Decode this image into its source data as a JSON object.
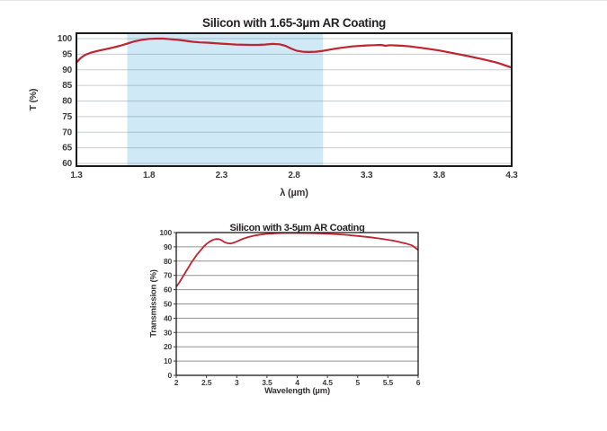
{
  "colors": {
    "curve_red": "#bf2430",
    "band_blue": "#cfe9f6",
    "grid_gray_top": "rgba(104,122,134,0.38)",
    "grid_gray_bottom": "#909090",
    "border_black": "#1b1b1b",
    "tick_text": "#3b3b3b"
  },
  "chart_data": [
    {
      "type": "line",
      "title": "Silicon with 1.65-3µm AR Coating",
      "xlabel": "λ (µm)",
      "ylabel": "T (%)",
      "xlim": [
        1.3,
        4.3
      ],
      "ylim": [
        60,
        100
      ],
      "xticks": [
        1.3,
        1.8,
        2.3,
        2.8,
        3.3,
        3.8,
        4.3
      ],
      "xtick_labels": [
        "1.3",
        "1.8",
        "2.3",
        "2.8",
        "3.3",
        "3.8",
        "4.3"
      ],
      "yticks": [
        60,
        65,
        70,
        75,
        80,
        85,
        90,
        95,
        100
      ],
      "ytick_labels": [
        "60",
        "65",
        "70",
        "75",
        "80",
        "85",
        "90",
        "95",
        "100"
      ],
      "grid": true,
      "legend": false,
      "line_color": "#bf2430",
      "band": {
        "from": 1.65,
        "to": 3.0,
        "color": "#cfe9f6"
      },
      "x": [
        1.3,
        1.33,
        1.36,
        1.4,
        1.45,
        1.5,
        1.55,
        1.6,
        1.65,
        1.7,
        1.75,
        1.8,
        1.85,
        1.9,
        1.95,
        2.0,
        2.05,
        2.1,
        2.15,
        2.2,
        2.3,
        2.4,
        2.5,
        2.55,
        2.6,
        2.65,
        2.7,
        2.74,
        2.78,
        2.82,
        2.86,
        2.9,
        2.95,
        3.0,
        3.05,
        3.1,
        3.2,
        3.3,
        3.35,
        3.4,
        3.43,
        3.46,
        3.5,
        3.55,
        3.6,
        3.7,
        3.8,
        3.9,
        4.0,
        4.1,
        4.2,
        4.3
      ],
      "y": [
        92.3,
        93.8,
        94.8,
        95.5,
        96.1,
        96.6,
        97.1,
        97.7,
        98.4,
        99.1,
        99.6,
        99.9,
        100.0,
        100.0,
        99.8,
        99.6,
        99.3,
        99.0,
        98.8,
        98.7,
        98.4,
        98.1,
        98.0,
        98.0,
        98.1,
        98.3,
        98.2,
        97.7,
        96.8,
        96.1,
        95.8,
        95.7,
        95.8,
        96.1,
        96.5,
        96.9,
        97.5,
        97.8,
        97.9,
        98.0,
        97.7,
        97.9,
        97.8,
        97.7,
        97.5,
        96.9,
        96.2,
        95.3,
        94.4,
        93.4,
        92.3,
        90.7
      ]
    },
    {
      "type": "line",
      "title": "Silicon with 3-5µm AR Coating",
      "xlabel": "Wavelength (µm)",
      "ylabel": "Transmission (%)",
      "xlim": [
        2,
        6
      ],
      "ylim": [
        0,
        100
      ],
      "xticks": [
        2,
        2.5,
        3,
        3.5,
        4,
        4.5,
        5,
        5.5,
        6
      ],
      "xtick_labels": [
        "2",
        "2.5",
        "3",
        "3.5",
        "4",
        "4.5",
        "5",
        "5.5",
        "6"
      ],
      "yticks": [
        0,
        10,
        20,
        30,
        40,
        50,
        60,
        70,
        80,
        90,
        100
      ],
      "ytick_labels": [
        "0",
        "10",
        "20",
        "30",
        "40",
        "50",
        "60",
        "70",
        "80",
        "90",
        "100"
      ],
      "grid": true,
      "legend": false,
      "line_color": "#bf2430",
      "x": [
        2.0,
        2.05,
        2.1,
        2.15,
        2.2,
        2.25,
        2.3,
        2.35,
        2.4,
        2.45,
        2.5,
        2.55,
        2.6,
        2.65,
        2.7,
        2.75,
        2.8,
        2.85,
        2.9,
        2.95,
        3.0,
        3.1,
        3.2,
        3.3,
        3.4,
        3.5,
        3.6,
        3.7,
        3.8,
        3.9,
        4.0,
        4.2,
        4.4,
        4.6,
        4.8,
        5.0,
        5.2,
        5.4,
        5.6,
        5.8,
        5.9,
        6.0
      ],
      "y": [
        62.0,
        65.0,
        68.5,
        72.0,
        75.5,
        79.0,
        82.0,
        85.0,
        87.5,
        90.0,
        92.0,
        93.6,
        94.8,
        95.4,
        95.5,
        94.6,
        93.2,
        92.5,
        92.3,
        92.9,
        93.8,
        95.6,
        96.9,
        97.9,
        98.6,
        99.1,
        99.4,
        99.6,
        99.7,
        99.7,
        99.7,
        99.6,
        99.4,
        99.0,
        98.4,
        97.6,
        96.7,
        95.6,
        94.3,
        92.3,
        91.0,
        87.8
      ]
    }
  ]
}
